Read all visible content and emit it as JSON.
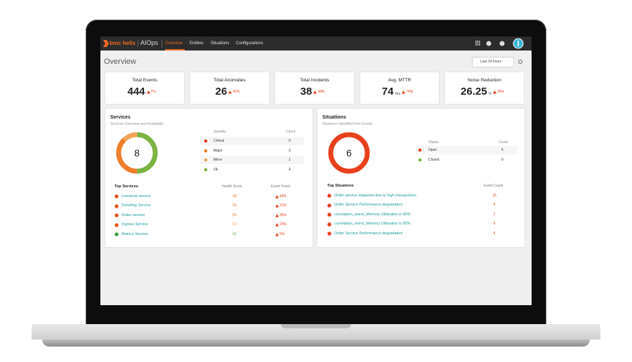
{
  "nav": {
    "brand": "bmc helix",
    "product": "AIOps",
    "items": [
      "Overview",
      "Entities",
      "Situations",
      "Configurations"
    ],
    "active": 0
  },
  "page": {
    "title": "Overview",
    "time_range": "Last 24 hours"
  },
  "kpis": [
    {
      "label": "Total Events",
      "value": "444",
      "change": "7%"
    },
    {
      "label": "Total Anomalies",
      "value": "26",
      "change": "26%"
    },
    {
      "label": "Total Incidents",
      "value": "38",
      "change": "38%"
    },
    {
      "label": "Avg. MTTR",
      "value": "74",
      "unit": "Hrs",
      "change": "74%"
    },
    {
      "label": "Noise Reduction",
      "value": "26.25",
      "unit": "%",
      "change": "26%"
    }
  ],
  "services": {
    "title": "Services",
    "subtitle": "Services Overview and Availability",
    "total": 8,
    "table_headers": [
      "Severity",
      "Count"
    ],
    "rows": [
      {
        "label": "Critical",
        "count": 0,
        "color": "#e8401c"
      },
      {
        "label": "Major",
        "count": 3,
        "color": "#f07d2b"
      },
      {
        "label": "Minor",
        "count": 1,
        "color": "#f5a55a"
      },
      {
        "label": "Ok",
        "count": 4,
        "color": "#7cb342"
      }
    ],
    "top": {
      "headers": [
        "Top Services",
        "Health Score",
        "Event Trend"
      ],
      "rows": [
        {
          "name": "Livestock service",
          "score": 38,
          "trend": "44%",
          "color": "#f07d2b"
        },
        {
          "name": "Ticketing Service",
          "score": 50,
          "trend": "22%",
          "color": "#f07d2b"
        },
        {
          "name": "Order-service",
          "score": 55,
          "trend": "33%",
          "color": "#f07d2b"
        },
        {
          "name": "Ingress Service",
          "score": 63,
          "trend": "23%",
          "color": "#f5a55a"
        },
        {
          "name": "Metrics Service",
          "score": 92,
          "trend": "5%",
          "color": "#7cb342"
        }
      ]
    }
  },
  "situations": {
    "title": "Situations",
    "subtitle": "Situations identified from Events",
    "total": 6,
    "table_headers": [
      "Status",
      "Count"
    ],
    "rows": [
      {
        "label": "Open",
        "count": 6,
        "color": "#e8401c"
      },
      {
        "label": "Closed",
        "count": 0,
        "color": "#7cb342"
      }
    ],
    "top": {
      "headers": [
        "Top Situations",
        "Event Count"
      ],
      "rows": [
        {
          "name": "Order service impacted due to high transactions",
          "count": 16
        },
        {
          "name": "Order Service Performance degradation",
          "count": 9
        },
        {
          "name": "correlation_event_Memory Utilization is 95%",
          "count": 7
        },
        {
          "name": "correlation_event_Memory Utilization is 95%",
          "count": 6
        },
        {
          "name": "Order Service Performance degradation",
          "count": 6
        }
      ]
    }
  }
}
